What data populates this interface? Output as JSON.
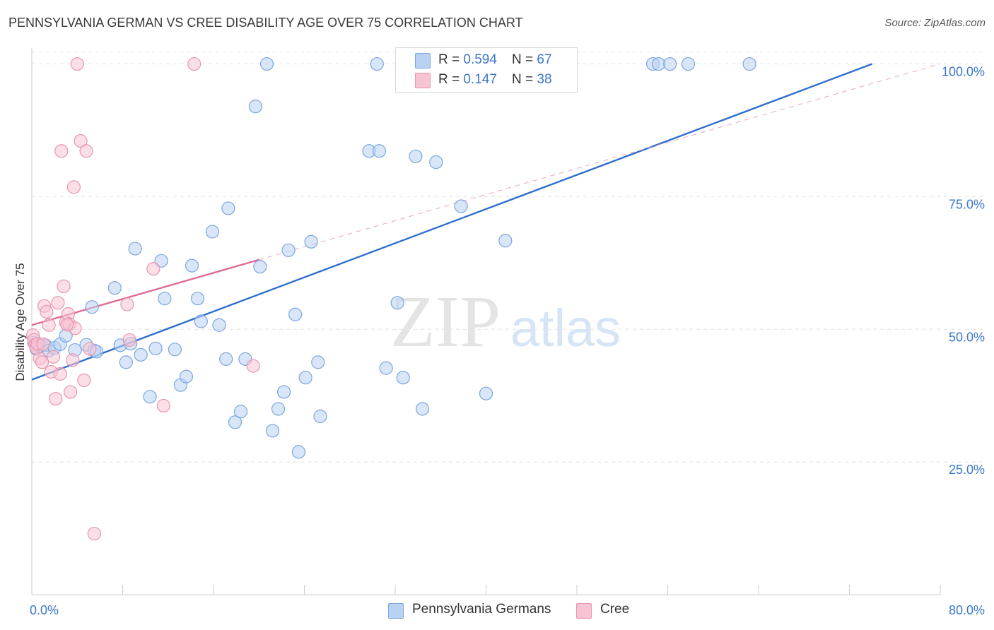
{
  "header": {
    "title": "PENNSYLVANIA GERMAN VS CREE DISABILITY AGE OVER 75 CORRELATION CHART",
    "source": "Source: ZipAtlas.com"
  },
  "legend": {
    "rows": [
      {
        "r_label": "R = ",
        "r_value": "0.594",
        "n_label": "N = ",
        "n_value": "67",
        "color": "#b9d2f3",
        "border": "#7aa7df"
      },
      {
        "r_label": "R = ",
        "r_value": "0.147",
        "n_label": "N = ",
        "n_value": "38",
        "color": "#f7c4d4",
        "border": "#e895b0"
      }
    ]
  },
  "bottom_legend": {
    "items": [
      {
        "label": "Pennsylvania Germans",
        "color": "#b9d2f3",
        "border": "#7aa7df"
      },
      {
        "label": "Cree",
        "color": "#f7c4d4",
        "border": "#e895b0"
      }
    ]
  },
  "watermark": {
    "zip": "ZIP",
    "atlas": "atlas"
  },
  "chart_data": {
    "type": "scatter",
    "title": "PENNSYLVANIA GERMAN VS CREE DISABILITY AGE OVER 75 CORRELATION CHART",
    "xlabel": "",
    "ylabel": "Disability Age Over 75",
    "xlim": [
      0,
      80
    ],
    "ylim": [
      0,
      103
    ],
    "x_tick_labels": [
      "0.0%",
      "80.0%"
    ],
    "y_ticks": [
      25,
      50,
      75,
      100
    ],
    "y_tick_labels": [
      "25.0%",
      "50.0%",
      "75.0%",
      "100.0%"
    ],
    "grid": true,
    "series": [
      {
        "name": "Pennsylvania Germans",
        "color": "#7aa7df",
        "fill": "#b9d2f3",
        "points": [
          [
            0.2,
            47.5
          ],
          [
            0.4,
            46.3
          ],
          [
            0.6,
            47.2
          ],
          [
            0.8,
            46.9
          ],
          [
            1.2,
            47.0
          ],
          [
            1.5,
            46.0
          ],
          [
            2.0,
            46.5
          ],
          [
            2.5,
            47.2
          ],
          [
            3.0,
            48.8
          ],
          [
            3.8,
            46.1
          ],
          [
            4.8,
            47.1
          ],
          [
            5.5,
            46.0
          ],
          [
            5.7,
            45.8
          ],
          [
            5.3,
            54.2
          ],
          [
            7.3,
            57.8
          ],
          [
            7.8,
            47.0
          ],
          [
            8.3,
            43.8
          ],
          [
            8.7,
            47.3
          ],
          [
            9.1,
            65.2
          ],
          [
            9.6,
            45.2
          ],
          [
            10.4,
            37.3
          ],
          [
            10.9,
            46.4
          ],
          [
            11.4,
            62.9
          ],
          [
            11.7,
            55.8
          ],
          [
            12.6,
            46.2
          ],
          [
            13.1,
            39.5
          ],
          [
            13.6,
            41.1
          ],
          [
            14.1,
            62.0
          ],
          [
            14.6,
            55.8
          ],
          [
            14.9,
            51.5
          ],
          [
            15.9,
            68.4
          ],
          [
            16.5,
            50.8
          ],
          [
            17.1,
            44.4
          ],
          [
            17.3,
            72.8
          ],
          [
            17.9,
            32.5
          ],
          [
            18.4,
            34.5
          ],
          [
            18.8,
            44.4
          ],
          [
            19.7,
            92.0
          ],
          [
            20.1,
            61.8
          ],
          [
            20.7,
            100.0
          ],
          [
            21.2,
            30.9
          ],
          [
            21.7,
            35.0
          ],
          [
            22.2,
            38.2
          ],
          [
            22.6,
            64.9
          ],
          [
            23.2,
            52.8
          ],
          [
            23.5,
            26.9
          ],
          [
            24.1,
            40.9
          ],
          [
            24.6,
            66.5
          ],
          [
            25.2,
            43.8
          ],
          [
            25.4,
            33.6
          ],
          [
            29.7,
            83.6
          ],
          [
            30.4,
            100.0
          ],
          [
            30.6,
            83.6
          ],
          [
            31.2,
            42.7
          ],
          [
            32.2,
            55.0
          ],
          [
            32.7,
            40.9
          ],
          [
            33.8,
            82.6
          ],
          [
            34.4,
            35.0
          ],
          [
            35.6,
            81.5
          ],
          [
            37.8,
            73.2
          ],
          [
            40.0,
            37.9
          ],
          [
            41.7,
            66.7
          ],
          [
            54.7,
            100.0
          ],
          [
            55.2,
            100.0
          ],
          [
            56.2,
            100.0
          ],
          [
            57.8,
            100.0
          ],
          [
            63.2,
            100.0
          ]
        ]
      },
      {
        "name": "Cree",
        "color": "#e895b0",
        "fill": "#f7c4d4",
        "points": [
          [
            0.1,
            48.9
          ],
          [
            0.2,
            48.0
          ],
          [
            0.3,
            47.1
          ],
          [
            0.4,
            46.5
          ],
          [
            0.5,
            47.3
          ],
          [
            0.7,
            44.5
          ],
          [
            0.9,
            43.8
          ],
          [
            1.1,
            54.4
          ],
          [
            1.3,
            53.3
          ],
          [
            1.5,
            50.8
          ],
          [
            1.7,
            42.0
          ],
          [
            1.9,
            44.8
          ],
          [
            2.1,
            36.9
          ],
          [
            2.3,
            55.0
          ],
          [
            2.5,
            41.6
          ],
          [
            2.6,
            83.6
          ],
          [
            2.8,
            58.1
          ],
          [
            3.0,
            51.3
          ],
          [
            3.2,
            52.9
          ],
          [
            3.3,
            51.0
          ],
          [
            3.4,
            38.2
          ],
          [
            3.6,
            44.2
          ],
          [
            3.7,
            76.8
          ],
          [
            3.8,
            50.2
          ],
          [
            4.0,
            100.0
          ],
          [
            4.3,
            85.5
          ],
          [
            4.6,
            40.4
          ],
          [
            4.8,
            83.6
          ],
          [
            5.1,
            46.3
          ],
          [
            5.5,
            11.5
          ],
          [
            8.4,
            54.7
          ],
          [
            8.6,
            48.0
          ],
          [
            10.7,
            61.4
          ],
          [
            11.6,
            35.6
          ],
          [
            14.3,
            100.0
          ],
          [
            19.5,
            43.1
          ],
          [
            1.0,
            47.2
          ],
          [
            3.1,
            50.9
          ]
        ]
      }
    ],
    "trendlines": [
      {
        "series": "Pennsylvania Germans",
        "style": "solid",
        "x": [
          0,
          74
        ],
        "y": [
          40.5,
          100.0
        ]
      },
      {
        "series": "Cree",
        "style": "solid",
        "x": [
          0,
          20
        ],
        "y": [
          50.8,
          63.1
        ]
      },
      {
        "series": "Cree",
        "style": "dashed",
        "x": [
          20,
          80
        ],
        "y": [
          63.1,
          100.0
        ]
      }
    ]
  }
}
